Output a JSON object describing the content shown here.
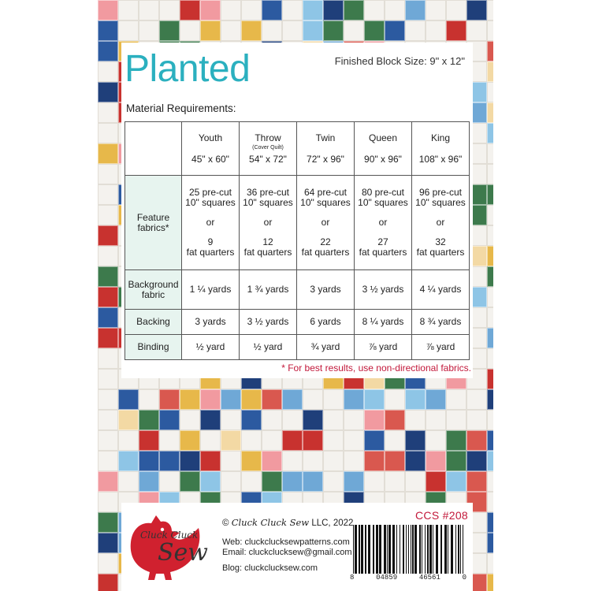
{
  "title": "Planted",
  "block_size": "Finished Block Size:  9\" x 12\"",
  "material_heading": "Material Requirements:",
  "sizes": [
    {
      "name": "Youth",
      "note": "",
      "dims": "45\" x 60\""
    },
    {
      "name": "Throw",
      "note": "(Cover Quilt)",
      "dims": "54\" x 72\""
    },
    {
      "name": "Twin",
      "note": "",
      "dims": "72\" x 96\""
    },
    {
      "name": "Queen",
      "note": "",
      "dims": "90\" x 96\""
    },
    {
      "name": "King",
      "note": "",
      "dims": "108\" x 96\""
    }
  ],
  "rows": {
    "feature": {
      "label_1": "Feature",
      "label_2": "fabrics*",
      "cells": [
        {
          "a": "25 pre-cut",
          "b": "10\" squares",
          "or": "or",
          "c": "9",
          "d": "fat quarters"
        },
        {
          "a": "36 pre-cut",
          "b": "10\" squares",
          "or": "or",
          "c": "12",
          "d": "fat quarters"
        },
        {
          "a": "64 pre-cut",
          "b": "10\" squares",
          "or": "or",
          "c": "22",
          "d": "fat quarters"
        },
        {
          "a": "80 pre-cut",
          "b": "10\" squares",
          "or": "or",
          "c": "27",
          "d": "fat quarters"
        },
        {
          "a": "96 pre-cut",
          "b": "10\" squares",
          "or": "or",
          "c": "32",
          "d": "fat quarters"
        }
      ]
    },
    "background": {
      "label_1": "Background",
      "label_2": "fabric",
      "cells": [
        "1 ¼ yards",
        "1 ¾ yards",
        "3 yards",
        "3 ½ yards",
        "4 ¼ yards"
      ]
    },
    "backing": {
      "label": "Backing",
      "cells": [
        "3 yards",
        "3 ½ yards",
        "6 yards",
        "8 ¼  yards",
        "8 ¾ yards"
      ]
    },
    "binding": {
      "label": "Binding",
      "cells": [
        "½ yard",
        "½ yard",
        "¾ yard",
        "⅞ yard",
        "⅞ yard"
      ]
    }
  },
  "footnote": "* For best results, use non-directional fabrics.",
  "footer": {
    "logo_line_1": "Cluck Cluck",
    "logo_line_2": "Sew",
    "copyright_prefix": "©",
    "copyright_brand": "Cluck Cluck Sew",
    "copyright_suffix": "LLC, 2022",
    "web": "Web: cluckclucksewpatterns.com",
    "email": "Email: cluckclucksew@gmail.com",
    "blog": "Blog:  cluckclucksew.com",
    "ccs": "CCS #208",
    "barcode_digits": [
      "8",
      "04859",
      "46561",
      "0"
    ]
  },
  "colors": {
    "title": "#2bb0bf",
    "accent_red": "#c2183a",
    "label_bg": "#e7f4ef",
    "hen": "#d0212f"
  }
}
